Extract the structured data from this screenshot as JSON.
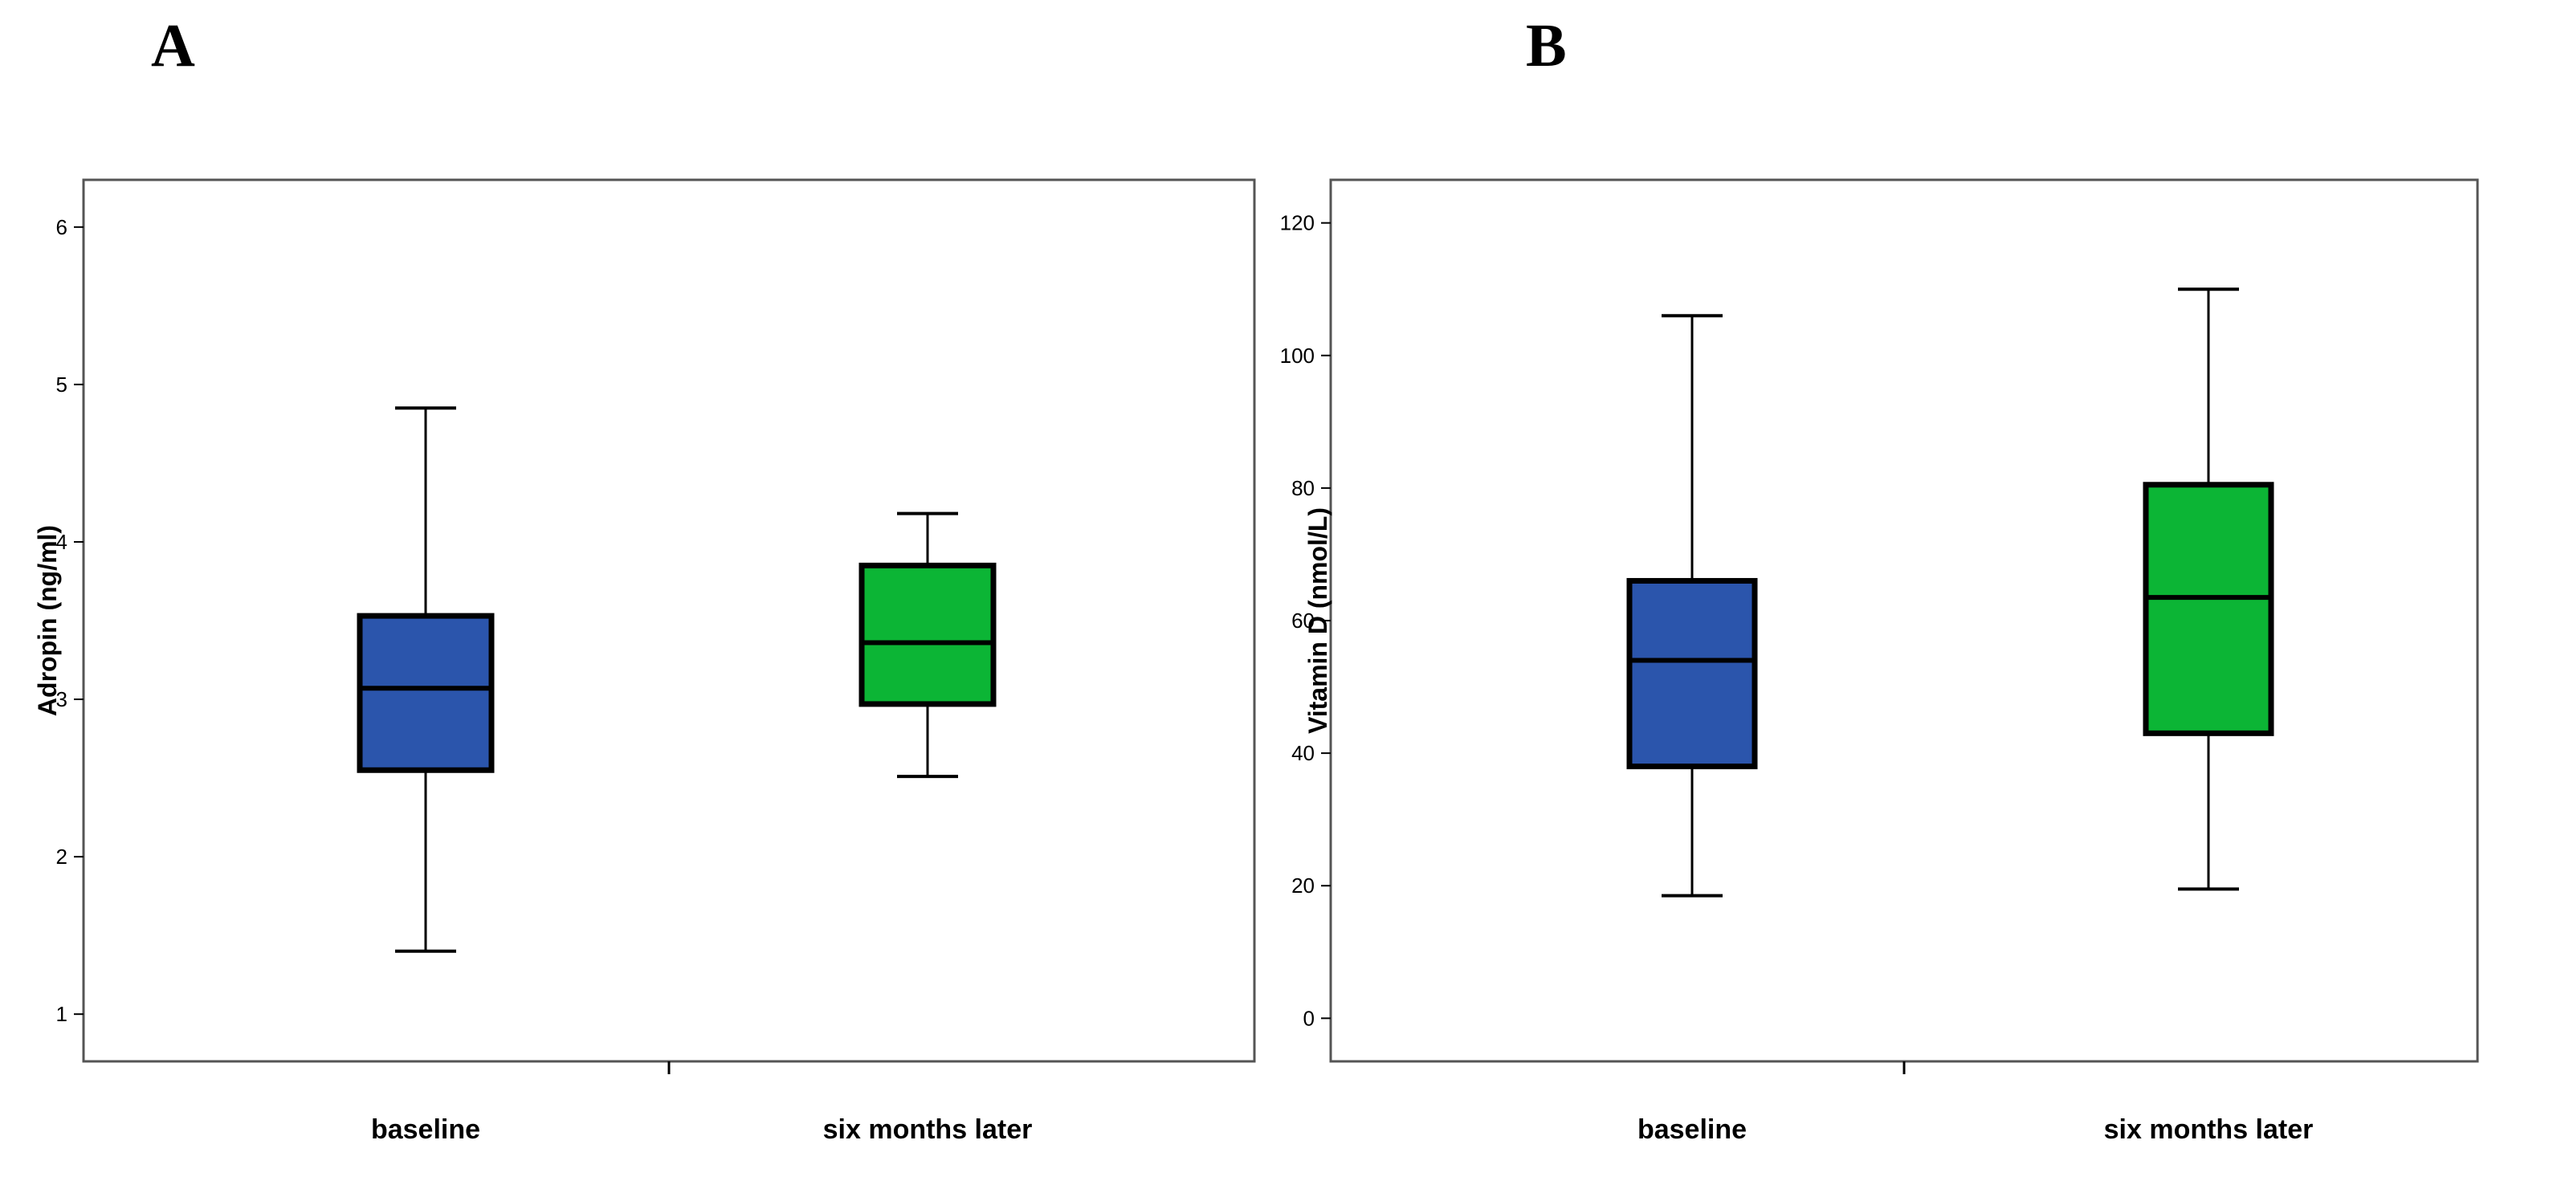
{
  "chart_data": [
    {
      "panel": "A",
      "type": "boxplot",
      "ylabel": "Adropin (ng/ml)",
      "ylim": [
        0.7,
        6.3
      ],
      "yticks": [
        1,
        2,
        3,
        4,
        5,
        6
      ],
      "categories": [
        "baseline",
        "six months later"
      ],
      "boxes": [
        {
          "category": "baseline",
          "min": 1.4,
          "q1": 2.55,
          "median": 3.07,
          "q3": 3.53,
          "max": 4.85,
          "color": "#2b55ac"
        },
        {
          "category": "six months later",
          "min": 2.51,
          "q1": 2.97,
          "median": 3.36,
          "q3": 3.85,
          "max": 4.18,
          "color": "#0cb535"
        }
      ]
    },
    {
      "panel": "B",
      "type": "boxplot",
      "ylabel": "Vitamin D (nmol/L)",
      "ylim": [
        -6.5,
        126.5
      ],
      "yticks": [
        0,
        20,
        40,
        60,
        80,
        100,
        120
      ],
      "categories": [
        "baseline",
        "six months later"
      ],
      "boxes": [
        {
          "category": "baseline",
          "min": 18.5,
          "q1": 38,
          "median": 54,
          "q3": 66,
          "max": 106,
          "color": "#2b55ac"
        },
        {
          "category": "six months later",
          "min": 19.5,
          "q1": 43,
          "median": 63.5,
          "q3": 80.5,
          "max": 110,
          "color": "#0cb535"
        }
      ]
    }
  ]
}
